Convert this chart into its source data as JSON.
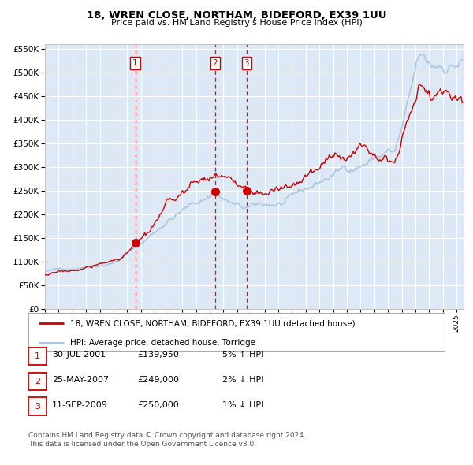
{
  "title": "18, WREN CLOSE, NORTHAM, BIDEFORD, EX39 1UU",
  "subtitle": "Price paid vs. HM Land Registry's House Price Index (HPI)",
  "sale_points": [
    {
      "num": 1,
      "x": 2001.58,
      "price": 139950
    },
    {
      "num": 2,
      "x": 2007.4,
      "price": 249000
    },
    {
      "num": 3,
      "x": 2009.7,
      "price": 250000
    }
  ],
  "legend_line1": "18, WREN CLOSE, NORTHAM, BIDEFORD, EX39 1UU (detached house)",
  "legend_line2": "HPI: Average price, detached house, Torridge",
  "table_rows": [
    {
      "num": 1,
      "date": "30-JUL-2001",
      "price": "£139,950",
      "hpi": "5% ↑ HPI"
    },
    {
      "num": 2,
      "date": "25-MAY-2007",
      "price": "£249,000",
      "hpi": "2% ↓ HPI"
    },
    {
      "num": 3,
      "date": "11-SEP-2009",
      "price": "£250,000",
      "hpi": "1% ↓ HPI"
    }
  ],
  "footer1": "Contains HM Land Registry data © Crown copyright and database right 2024.",
  "footer2": "This data is licensed under the Open Government Licence v3.0.",
  "hpi_color": "#aac4e0",
  "price_color": "#cc0000",
  "vline_color": "#cc0000",
  "plot_bg": "#dce8f5",
  "grid_color": "#ffffff",
  "ylim": [
    0,
    560000
  ],
  "xlim_start": 1995.0,
  "xlim_end": 2025.5
}
